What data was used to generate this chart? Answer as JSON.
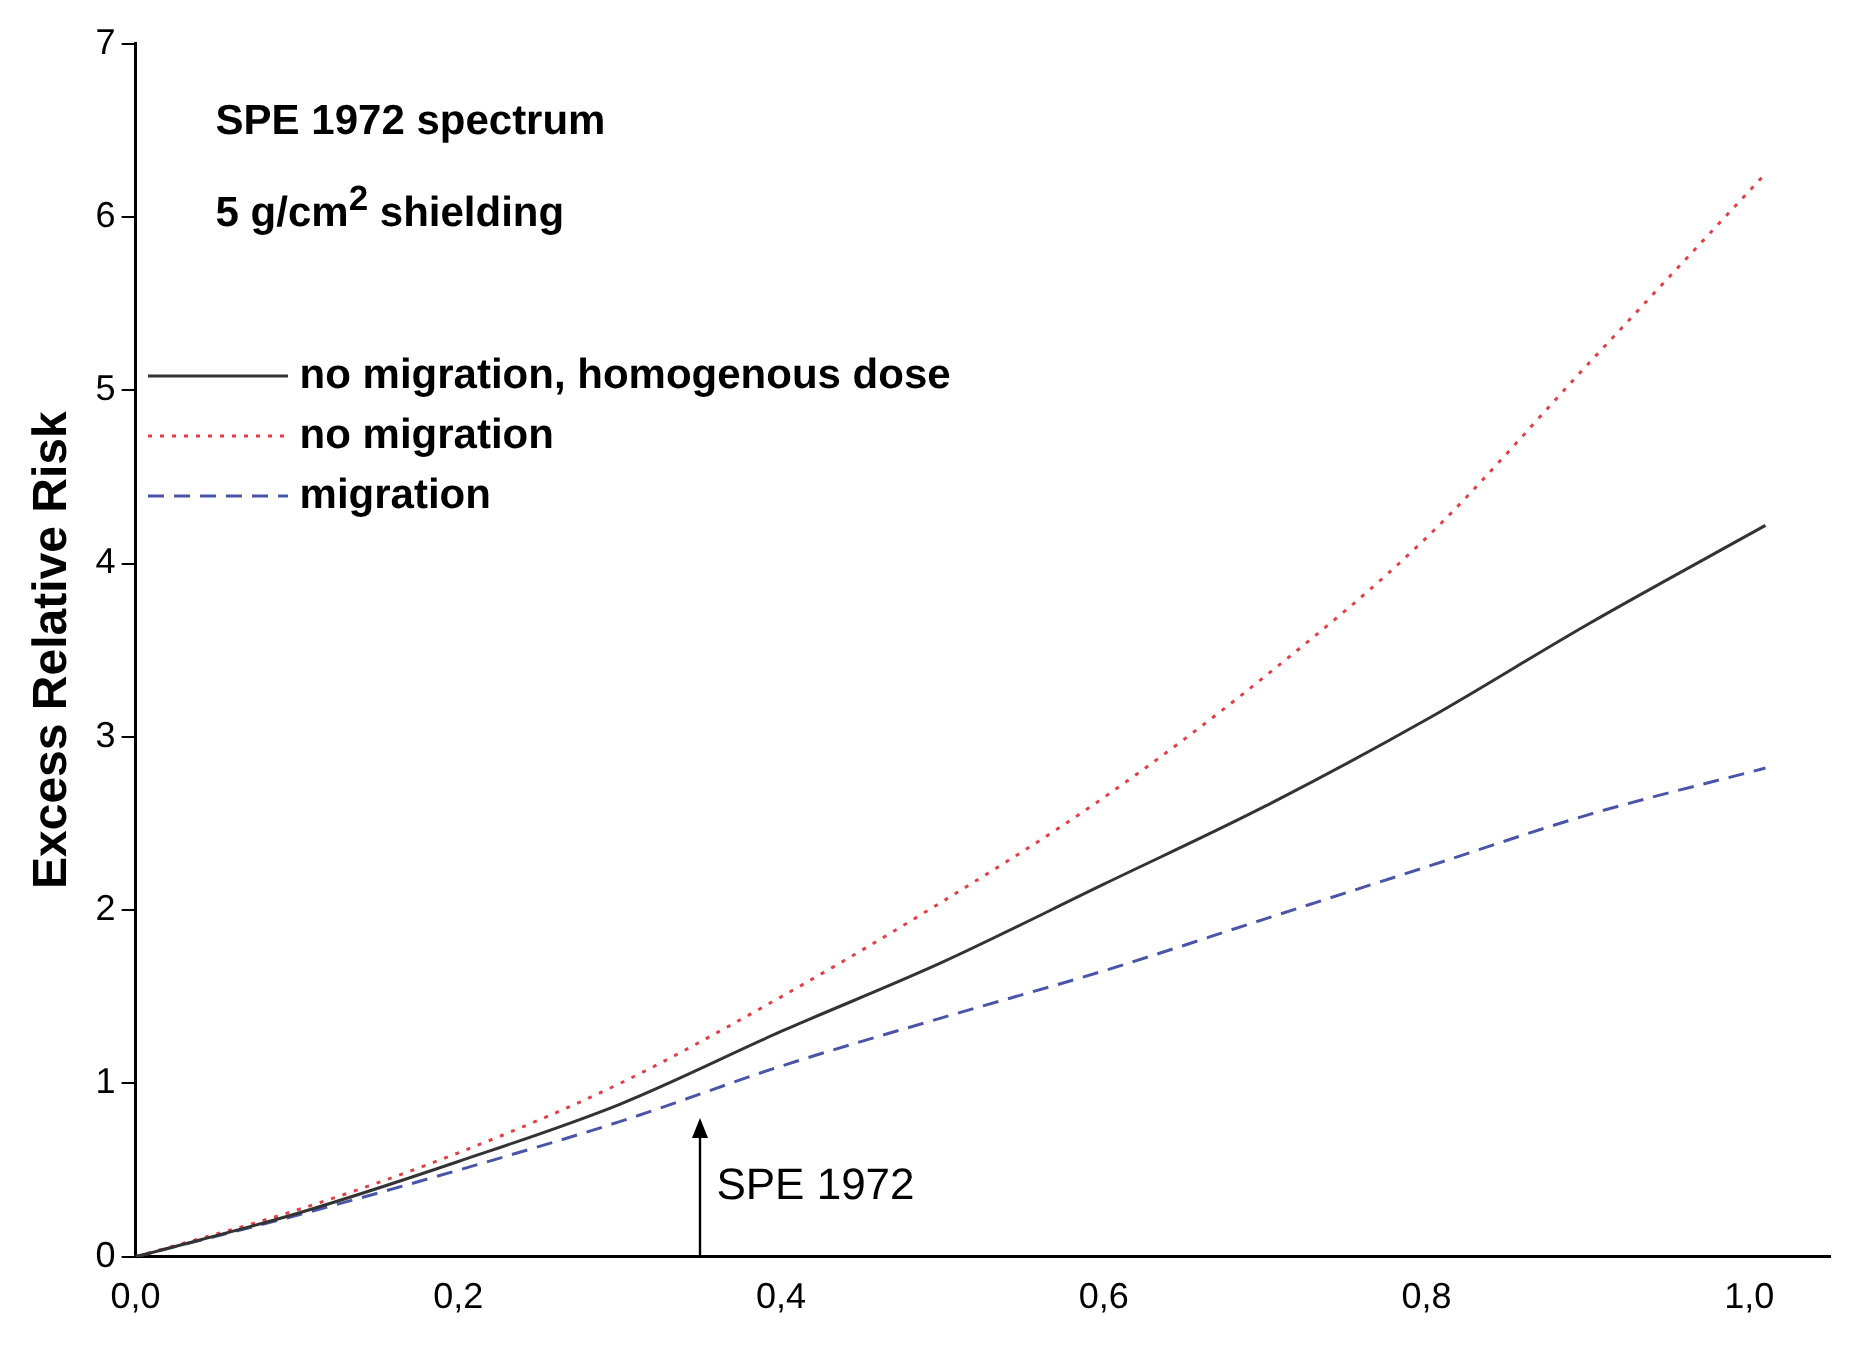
{
  "chart_data": {
    "type": "line",
    "title": "SPE 1972 spectrum",
    "subtitle": "5 g/cm$^{2}$ shielding",
    "ylabel": "Excess Relative Risk",
    "x": [
      0,
      0.1,
      0.2,
      0.3,
      0.4,
      0.5,
      0.6,
      0.7,
      0.8,
      0.9,
      1.01
    ],
    "series": [
      {
        "name": "no migration, homogenous dose",
        "color": "#333333",
        "line_style": "solid",
        "values": [
          0,
          0.25,
          0.55,
          0.88,
          1.3,
          1.7,
          2.15,
          2.6,
          3.1,
          3.65,
          4.22
        ]
      },
      {
        "name": "no migration",
        "color": "#e0404a",
        "line_style": "dotted",
        "values": [
          0,
          0.27,
          0.6,
          1.0,
          1.5,
          2.05,
          2.65,
          3.35,
          4.15,
          5.15,
          6.25
        ]
      },
      {
        "name": "migration",
        "color": "#4a55a8",
        "line_style": "dashed",
        "values": [
          0,
          0.24,
          0.5,
          0.78,
          1.1,
          1.38,
          1.65,
          1.95,
          2.25,
          2.55,
          2.82
        ]
      }
    ],
    "xlim": [
      0,
      1.05
    ],
    "xticks": [
      {
        "value": 0,
        "label": "0,0"
      },
      {
        "value": 0.2,
        "label": "0,2"
      },
      {
        "value": 0.4,
        "label": "0,4"
      },
      {
        "value": 0.6,
        "label": "0,6"
      },
      {
        "value": 0.8,
        "label": "0,8"
      },
      {
        "value": 1.0,
        "label": "1,0"
      }
    ],
    "ylim": [
      0,
      7
    ],
    "yticks": [
      0,
      1,
      2,
      3,
      4,
      5,
      6,
      7
    ],
    "ref_lines": [
      {
        "axis": "x",
        "value": 0.35,
        "label": "SPE 1972"
      }
    ],
    "legend": "top left",
    "grid": false,
    "marker": "none"
  }
}
